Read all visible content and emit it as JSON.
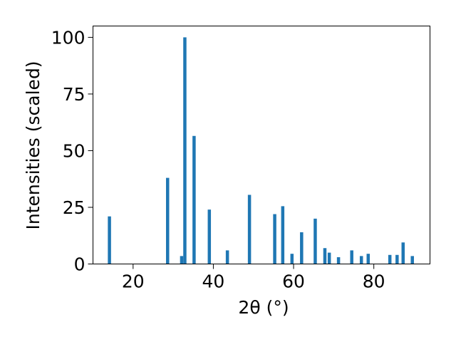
{
  "chart_data": {
    "type": "bar",
    "xlabel": "2θ (°)",
    "ylabel": "Intensities (scaled)",
    "xlim": [
      10,
      94
    ],
    "ylim": [
      0,
      105
    ],
    "grid": false,
    "bar_color": "#1f77b4",
    "xticks": [
      20,
      40,
      60,
      80
    ],
    "yticks": [
      0,
      25,
      50,
      75,
      100
    ],
    "peaks": [
      {
        "x": 14.1,
        "y": 21
      },
      {
        "x": 28.6,
        "y": 38
      },
      {
        "x": 32.1,
        "y": 3.5
      },
      {
        "x": 32.9,
        "y": 100
      },
      {
        "x": 35.2,
        "y": 56.5
      },
      {
        "x": 39.0,
        "y": 24
      },
      {
        "x": 43.5,
        "y": 6
      },
      {
        "x": 49.0,
        "y": 30.5
      },
      {
        "x": 55.3,
        "y": 22
      },
      {
        "x": 57.3,
        "y": 25.5
      },
      {
        "x": 59.6,
        "y": 4.5
      },
      {
        "x": 62.0,
        "y": 14
      },
      {
        "x": 65.4,
        "y": 20
      },
      {
        "x": 67.8,
        "y": 7
      },
      {
        "x": 68.9,
        "y": 5
      },
      {
        "x": 71.2,
        "y": 3
      },
      {
        "x": 74.5,
        "y": 6
      },
      {
        "x": 76.9,
        "y": 3.5
      },
      {
        "x": 78.6,
        "y": 4.5
      },
      {
        "x": 84.0,
        "y": 4
      },
      {
        "x": 85.8,
        "y": 4
      },
      {
        "x": 87.3,
        "y": 9.5
      },
      {
        "x": 89.6,
        "y": 3.5
      }
    ]
  }
}
